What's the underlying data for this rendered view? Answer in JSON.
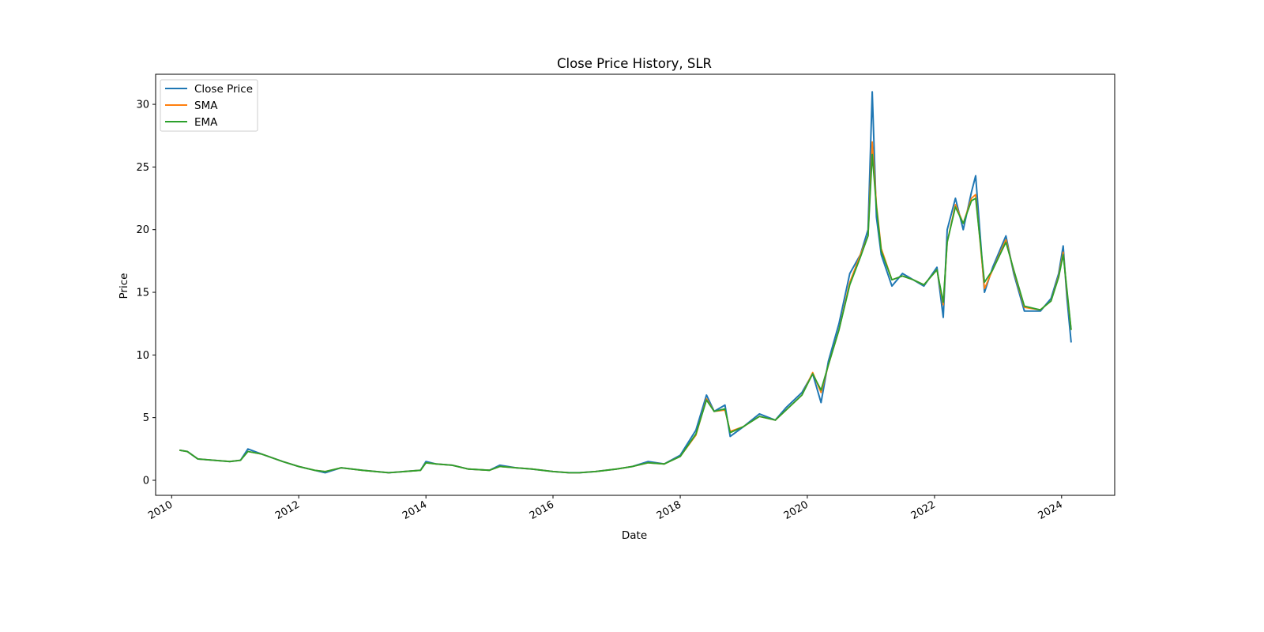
{
  "chart_data": {
    "type": "line",
    "title": "Close Price History, SLR",
    "xlabel": "Date",
    "ylabel": "Price",
    "x_tick_labels": [
      "2010",
      "2012",
      "2014",
      "2016",
      "2018",
      "2020",
      "2022",
      "2024"
    ],
    "y_tick_labels": [
      "0",
      "5",
      "10",
      "15",
      "20",
      "25",
      "30"
    ],
    "xlim": [
      "2009-10-01",
      "2024-11-01"
    ],
    "ylim": [
      -1.2,
      32.4
    ],
    "grid": false,
    "legend_position": "top-left",
    "x": [
      "2010-02-15",
      "2010-04-01",
      "2010-06-01",
      "2010-09-01",
      "2010-12-01",
      "2011-02-01",
      "2011-03-15",
      "2011-06-01",
      "2011-10-01",
      "2012-01-01",
      "2012-04-01",
      "2012-06-01",
      "2012-09-01",
      "2013-01-01",
      "2013-06-01",
      "2013-12-01",
      "2014-01-01",
      "2014-03-01",
      "2014-06-01",
      "2014-09-01",
      "2015-01-01",
      "2015-03-01",
      "2015-06-01",
      "2015-09-01",
      "2016-01-01",
      "2016-04-01",
      "2016-06-01",
      "2016-09-01",
      "2017-01-01",
      "2017-04-01",
      "2017-07-01",
      "2017-10-01",
      "2018-01-01",
      "2018-04-01",
      "2018-06-01",
      "2018-07-15",
      "2018-09-15",
      "2018-10-15",
      "2019-01-01",
      "2019-04-01",
      "2019-07-01",
      "2019-09-01",
      "2019-12-01",
      "2020-02-01",
      "2020-03-20",
      "2020-05-01",
      "2020-07-01",
      "2020-09-01",
      "2020-11-01",
      "2020-12-15",
      "2021-01-08",
      "2021-02-01",
      "2021-03-01",
      "2021-05-01",
      "2021-07-01",
      "2021-09-01",
      "2021-11-01",
      "2022-01-15",
      "2022-02-20",
      "2022-03-15",
      "2022-05-01",
      "2022-06-15",
      "2022-08-01",
      "2022-08-25",
      "2022-10-15",
      "2022-12-01",
      "2023-02-15",
      "2023-04-01",
      "2023-06-01",
      "2023-09-01",
      "2023-11-01",
      "2023-12-15",
      "2024-01-10",
      "2024-02-01",
      "2024-02-25"
    ],
    "series": [
      {
        "name": "Close Price",
        "color": "#1f77b4",
        "values": [
          2.4,
          2.3,
          1.7,
          1.6,
          1.5,
          1.6,
          2.5,
          2.1,
          1.5,
          1.1,
          0.8,
          0.6,
          1.0,
          0.8,
          0.6,
          0.8,
          1.5,
          1.3,
          1.2,
          0.9,
          0.8,
          1.2,
          1.0,
          0.9,
          0.7,
          0.6,
          0.6,
          0.7,
          0.9,
          1.1,
          1.5,
          1.3,
          2.0,
          4.0,
          6.8,
          5.5,
          6.0,
          3.5,
          4.3,
          5.3,
          4.8,
          5.8,
          7.0,
          8.5,
          6.2,
          9.5,
          12.5,
          16.5,
          18.0,
          20.0,
          31.0,
          21.0,
          18.0,
          15.5,
          16.5,
          16.0,
          15.5,
          17.0,
          13.0,
          20.0,
          22.5,
          20.0,
          23.0,
          24.3,
          15.0,
          17.0,
          19.5,
          16.5,
          13.5,
          13.5,
          14.5,
          16.5,
          18.7,
          14.5,
          11.0
        ]
      },
      {
        "name": "SMA",
        "color": "#ff7f0e",
        "values": [
          2.4,
          2.3,
          1.7,
          1.6,
          1.5,
          1.6,
          2.3,
          2.1,
          1.5,
          1.1,
          0.8,
          0.7,
          1.0,
          0.8,
          0.6,
          0.8,
          1.4,
          1.3,
          1.2,
          0.9,
          0.8,
          1.1,
          1.0,
          0.9,
          0.7,
          0.6,
          0.6,
          0.7,
          0.9,
          1.1,
          1.4,
          1.3,
          1.9,
          3.6,
          6.5,
          5.5,
          5.6,
          3.9,
          4.3,
          5.1,
          4.8,
          5.6,
          6.8,
          8.6,
          7.0,
          9.2,
          12.0,
          15.8,
          18.0,
          19.5,
          27.0,
          22.0,
          18.5,
          16.0,
          16.3,
          16.0,
          15.6,
          16.8,
          14.0,
          19.0,
          22.0,
          20.5,
          22.5,
          22.8,
          15.3,
          16.8,
          19.2,
          16.7,
          13.8,
          13.6,
          14.3,
          16.3,
          18.2,
          15.0,
          12.0
        ]
      },
      {
        "name": "EMA",
        "color": "#2ca02c",
        "values": [
          2.4,
          2.3,
          1.7,
          1.6,
          1.5,
          1.6,
          2.3,
          2.1,
          1.5,
          1.1,
          0.8,
          0.7,
          1.0,
          0.8,
          0.6,
          0.8,
          1.4,
          1.3,
          1.2,
          0.9,
          0.8,
          1.1,
          1.0,
          0.9,
          0.7,
          0.6,
          0.6,
          0.7,
          0.9,
          1.1,
          1.4,
          1.3,
          1.9,
          3.7,
          6.4,
          5.5,
          5.7,
          3.8,
          4.3,
          5.1,
          4.8,
          5.6,
          6.8,
          8.5,
          7.2,
          9.2,
          12.0,
          15.6,
          17.8,
          19.5,
          26.0,
          21.8,
          18.3,
          16.0,
          16.3,
          16.0,
          15.6,
          16.8,
          14.2,
          19.0,
          21.8,
          20.5,
          22.3,
          22.5,
          15.8,
          16.8,
          19.0,
          16.8,
          13.9,
          13.6,
          14.3,
          16.2,
          18.0,
          15.2,
          12.0
        ]
      }
    ]
  }
}
